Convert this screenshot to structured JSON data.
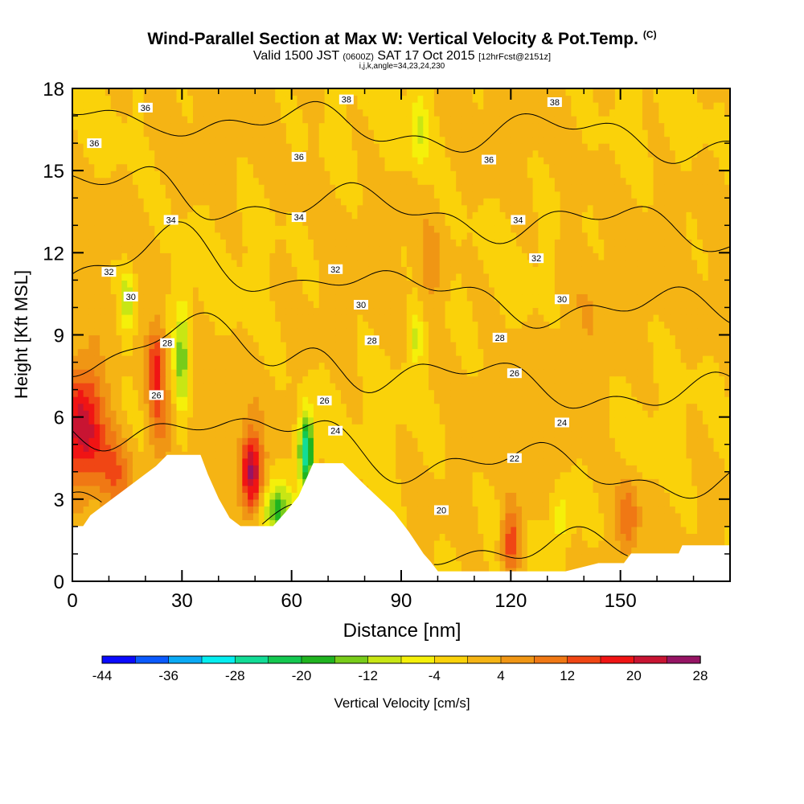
{
  "title": {
    "main": "Wind-Parallel Section at Max W: Vertical Velocity & Pot.Temp.",
    "copyright": "(C)",
    "valid_prefix": "Valid 1500 JST",
    "valid_utc": "(0600Z)",
    "valid_date": "SAT 17 Oct 2015",
    "forecast": "[12hrFcst@2151z]",
    "params": "i,j,k,angle=34,23,24,230"
  },
  "chart_data": {
    "type": "heatmap",
    "xlabel": "Distance [nm]",
    "ylabel": "Height [Kft MSL]",
    "xlim": [
      0,
      180
    ],
    "ylim": [
      0,
      18
    ],
    "x_ticks": [
      0,
      30,
      60,
      90,
      120,
      150
    ],
    "y_ticks": [
      0,
      3,
      6,
      9,
      12,
      15,
      18
    ],
    "colorbar": {
      "label": "Vertical Velocity [cm/s]",
      "ticks": [
        -44,
        -36,
        -28,
        -20,
        -12,
        -4,
        4,
        12,
        20,
        28
      ],
      "bounds": [
        -44,
        -40,
        -36,
        -32,
        -28,
        -24,
        -20,
        -16,
        -12,
        -8,
        -4,
        0,
        4,
        8,
        12,
        16,
        20,
        24,
        28
      ],
      "colors": [
        "#0a0aff",
        "#0a5aff",
        "#0aaaf5",
        "#05eef0",
        "#12dc96",
        "#14c850",
        "#20b420",
        "#78cc1a",
        "#c8e614",
        "#f5f00a",
        "#fad20a",
        "#f5b414",
        "#f09614",
        "#f07814",
        "#f04614",
        "#f01414",
        "#c81432",
        "#961464"
      ]
    },
    "terrain": [
      [
        0,
        2.0
      ],
      [
        3,
        2.0
      ],
      [
        5,
        2.4
      ],
      [
        8,
        2.7
      ],
      [
        11,
        3.0
      ],
      [
        14,
        3.3
      ],
      [
        17,
        3.6
      ],
      [
        20,
        3.9
      ],
      [
        23,
        4.2
      ],
      [
        26,
        4.6
      ],
      [
        35,
        4.6
      ],
      [
        37,
        3.9
      ],
      [
        40,
        3.0
      ],
      [
        43,
        2.3
      ],
      [
        46,
        2.0
      ],
      [
        55,
        2.0
      ],
      [
        57,
        2.3
      ],
      [
        59,
        2.6
      ],
      [
        62,
        3.1
      ],
      [
        64,
        3.7
      ],
      [
        66,
        4.3
      ],
      [
        74,
        4.3
      ],
      [
        77,
        3.9
      ],
      [
        80,
        3.5
      ],
      [
        84,
        3.0
      ],
      [
        88,
        2.5
      ],
      [
        92,
        1.8
      ],
      [
        96,
        1.0
      ],
      [
        98,
        0.7
      ],
      [
        100,
        0.35
      ],
      [
        135,
        0.35
      ],
      [
        144,
        0.65
      ],
      [
        151,
        0.65
      ],
      [
        153,
        1.0
      ],
      [
        166,
        1.0
      ],
      [
        167,
        1.3
      ],
      [
        180,
        1.3
      ]
    ],
    "theta_contours": [
      {
        "base": 20,
        "label": "20",
        "label_at": [
          101,
          2.55
        ]
      },
      {
        "base": 22,
        "label": "22",
        "label_at": [
          121,
          4.45
        ]
      },
      {
        "base": 24,
        "label": "24",
        "label_at": [
          134,
          5.8
        ]
      },
      {
        "base": 26,
        "label": "26",
        "label_at": [
          121,
          7.55
        ]
      },
      {
        "base": 28,
        "label": "28",
        "label_at": [
          117,
          8.85
        ]
      },
      {
        "base": 30,
        "label": "30",
        "label_at": [
          134,
          10.25
        ]
      },
      {
        "base": 32,
        "label": "32",
        "label_at": [
          127,
          11.8
        ]
      },
      {
        "base": 34,
        "label": "34",
        "label_at": [
          122,
          13.2
        ]
      },
      {
        "base": 36,
        "label": "36",
        "label_at": [
          114,
          15.4
        ]
      },
      {
        "base": 38,
        "label": "38",
        "label_at": [
          132,
          17.5
        ]
      }
    ],
    "contour_labels": [
      {
        "label": "36",
        "x": 20,
        "y": 17.3
      },
      {
        "label": "38",
        "x": 75,
        "y": 17.6
      },
      {
        "label": "38",
        "x": 132,
        "y": 17.5
      },
      {
        "label": "36",
        "x": 6,
        "y": 16.0
      },
      {
        "label": "36",
        "x": 62,
        "y": 15.5
      },
      {
        "label": "36",
        "x": 114,
        "y": 15.4
      },
      {
        "label": "34",
        "x": 27,
        "y": 13.2
      },
      {
        "label": "34",
        "x": 62,
        "y": 13.3
      },
      {
        "label": "34",
        "x": 122,
        "y": 13.2
      },
      {
        "label": "32",
        "x": 10,
        "y": 11.3
      },
      {
        "label": "32",
        "x": 72,
        "y": 11.4
      },
      {
        "label": "32",
        "x": 127,
        "y": 11.8
      },
      {
        "label": "30",
        "x": 16,
        "y": 10.4
      },
      {
        "label": "30",
        "x": 79,
        "y": 10.1
      },
      {
        "label": "30",
        "x": 134,
        "y": 10.3
      },
      {
        "label": "28",
        "x": 26,
        "y": 8.7
      },
      {
        "label": "28",
        "x": 82,
        "y": 8.8
      },
      {
        "label": "28",
        "x": 117,
        "y": 8.9
      },
      {
        "label": "26",
        "x": 23,
        "y": 6.8
      },
      {
        "label": "26",
        "x": 69,
        "y": 6.6
      },
      {
        "label": "26",
        "x": 121,
        "y": 7.6
      },
      {
        "label": "24",
        "x": 72,
        "y": 5.5
      },
      {
        "label": "24",
        "x": 134,
        "y": 5.8
      },
      {
        "label": "22",
        "x": 121,
        "y": 4.5
      },
      {
        "label": "20",
        "x": 101,
        "y": 2.6
      }
    ]
  }
}
